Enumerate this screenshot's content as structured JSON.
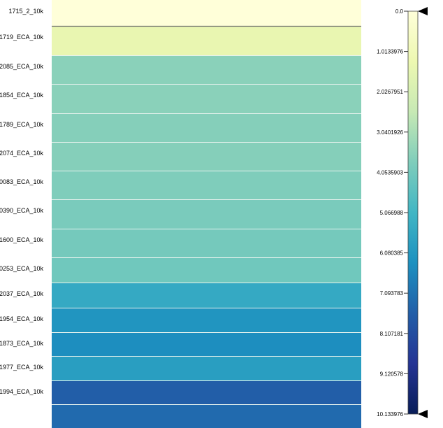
{
  "chart_data": {
    "type": "heatmap",
    "title": "",
    "xlabel": "",
    "ylabel": "",
    "rows": [
      {
        "label": "1715_2_10k",
        "value": 0.0
      },
      {
        "label": "1719_ECA_10k",
        "value": 1.4
      },
      {
        "label": "2085_ECA_10k",
        "value": 3.6
      },
      {
        "label": "1854_ECA_10k",
        "value": 3.6
      },
      {
        "label": "1789_ECA_10k",
        "value": 3.7
      },
      {
        "label": "2074_ECA_10k",
        "value": 3.7
      },
      {
        "label": "0083_ECA_10k",
        "value": 3.8
      },
      {
        "label": "0390_ECA_10k",
        "value": 3.9
      },
      {
        "label": "1600_ECA_10k",
        "value": 4.0
      },
      {
        "label": "0253_ECA_10k",
        "value": 4.1
      },
      {
        "label": "2037_ECA_10k",
        "value": 5.5
      },
      {
        "label": "1954_ECA_10k",
        "value": 6.2
      },
      {
        "label": "1873_ECA_10k",
        "value": 6.4
      },
      {
        "label": "1977_ECA_10k",
        "value": 5.9
      },
      {
        "label": "1994_ECA_10k",
        "value": 7.6
      },
      {
        "label": "",
        "value": 7.3
      }
    ],
    "colorbar": {
      "min": 0.0,
      "max": 10.133976,
      "ticks": [
        "0.0",
        "1.0133976",
        "2.0267951",
        "3.0401926",
        "4.0535903",
        "5.066988",
        "6.080385",
        "7.093783",
        "8.107181",
        "9.120578",
        "10.133976"
      ]
    },
    "colorscale": [
      "#ffffd9",
      "#edf8b1",
      "#c7e9b4",
      "#7fcdbb",
      "#41b6c4",
      "#1d91c0",
      "#225ea8",
      "#253494",
      "#081d58"
    ]
  }
}
